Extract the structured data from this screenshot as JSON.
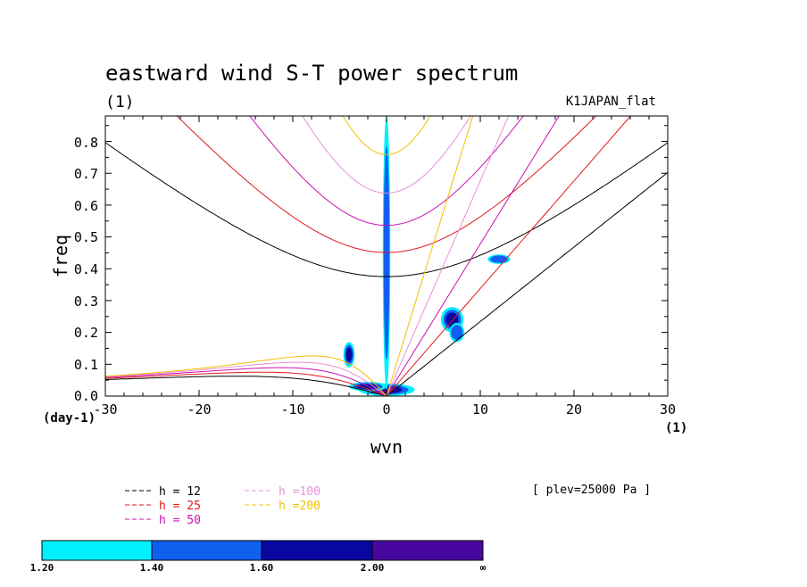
{
  "chart_data": {
    "type": "contour",
    "title": "eastward wind S-T power spectrum",
    "panel_label": "(1)",
    "dataset_label": "K1JAPAN_flat",
    "xlabel": "wvn",
    "ylabel": "freq",
    "x_unit": "(1)",
    "y_unit": "(day-1)",
    "xlim": [
      -30,
      30
    ],
    "ylim": [
      0,
      0.88
    ],
    "x_ticks": [
      "-30",
      "-20",
      "-10",
      "0",
      "10",
      "20",
      "30"
    ],
    "y_ticks": [
      "0.0",
      "0.1",
      "0.2",
      "0.3",
      "0.4",
      "0.5",
      "0.6",
      "0.7",
      "0.8"
    ],
    "level_note": "[ plev=25000 Pa ]",
    "dispersion_curves": [
      {
        "h": 12,
        "label": "h = 12",
        "color": "#000000"
      },
      {
        "h": 25,
        "label": "h = 25",
        "color": "#e01818"
      },
      {
        "h": 50,
        "label": "h = 50",
        "color": "#cc10b0"
      },
      {
        "h": 100,
        "label": "h =100",
        "color": "#e890d8"
      },
      {
        "h": 200,
        "label": "h =200",
        "color": "#f0c000"
      }
    ],
    "colorbar": {
      "levels": [
        "1.20",
        "1.40",
        "1.60",
        "2.00",
        "∞"
      ],
      "colors": [
        "#00f0ff",
        "#1060f0",
        "#0808a0",
        "#4808a0"
      ]
    },
    "filled_regions_approx": [
      {
        "x": 0,
        "y": 0.02,
        "rx": 3,
        "ry": 0.02,
        "level": 4
      },
      {
        "x": -2,
        "y": 0.03,
        "rx": 2,
        "ry": 0.015,
        "level": 3
      },
      {
        "x": -4,
        "y": 0.13,
        "rx": 0.6,
        "ry": 0.04,
        "level": 3
      },
      {
        "x": 0,
        "y": 0.45,
        "rx": 0.4,
        "ry": 0.43,
        "level": 2
      },
      {
        "x": 7,
        "y": 0.24,
        "rx": 1.2,
        "ry": 0.04,
        "level": 3
      },
      {
        "x": 7.5,
        "y": 0.2,
        "rx": 0.8,
        "ry": 0.03,
        "level": 2
      },
      {
        "x": 12,
        "y": 0.43,
        "rx": 1.2,
        "ry": 0.015,
        "level": 2
      }
    ]
  }
}
